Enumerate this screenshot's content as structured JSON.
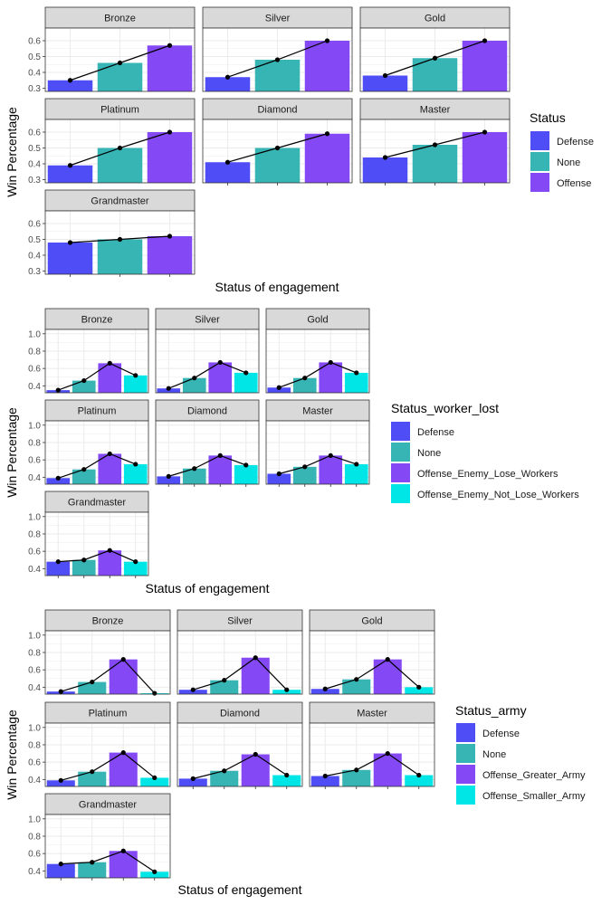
{
  "colors": {
    "Defense": "#4f4df5",
    "None": "#37b4b4",
    "Offense": "#8448f5",
    "Offense_Enemy_Lose_Workers": "#8448f5",
    "Offense_Greater_Army": "#8448f5",
    "Offense_Enemy_Not_Lose_Workers": "#00e5e5",
    "Offense_Smaller_Army": "#00e5e5",
    "strip_fill": "#d9d9d9",
    "grid": "#ebebeb",
    "line": "#000000"
  },
  "chart_data": [
    {
      "type": "bar",
      "facets": [
        "Bronze",
        "Silver",
        "Gold",
        "Platinum",
        "Diamond",
        "Master",
        "Grandmaster"
      ],
      "categories": [
        "Defense",
        "None",
        "Offense"
      ],
      "values": {
        "Bronze": [
          0.35,
          0.46,
          0.57
        ],
        "Silver": [
          0.37,
          0.48,
          0.6
        ],
        "Gold": [
          0.38,
          0.49,
          0.6
        ],
        "Platinum": [
          0.39,
          0.5,
          0.6
        ],
        "Diamond": [
          0.41,
          0.5,
          0.59
        ],
        "Master": [
          0.44,
          0.52,
          0.6
        ],
        "Grandmaster": [
          0.48,
          0.5,
          0.52
        ]
      },
      "ylim": [
        0.28,
        0.68
      ],
      "yticks": [
        0.3,
        0.4,
        0.5,
        0.6
      ],
      "xlabel": "Status of engagement",
      "ylabel": "Win Percentage",
      "legend_title": "Status",
      "legend_position": "right"
    },
    {
      "type": "bar",
      "facets": [
        "Bronze",
        "Silver",
        "Gold",
        "Platinum",
        "Diamond",
        "Master",
        "Grandmaster"
      ],
      "categories": [
        "Defense",
        "None",
        "Offense_Enemy_Lose_Workers",
        "Offense_Enemy_Not_Lose_Workers"
      ],
      "values": {
        "Bronze": [
          0.35,
          0.46,
          0.66,
          0.52
        ],
        "Silver": [
          0.37,
          0.49,
          0.67,
          0.55
        ],
        "Gold": [
          0.38,
          0.49,
          0.67,
          0.55
        ],
        "Platinum": [
          0.39,
          0.49,
          0.67,
          0.55
        ],
        "Diamond": [
          0.41,
          0.5,
          0.65,
          0.54
        ],
        "Master": [
          0.44,
          0.52,
          0.65,
          0.55
        ],
        "Grandmaster": [
          0.48,
          0.5,
          0.61,
          0.48
        ]
      },
      "ylim": [
        0.32,
        1.05
      ],
      "yticks": [
        0.4,
        0.6,
        0.8,
        1.0
      ],
      "xlabel": "Status of engagement",
      "ylabel": "Win Percentage",
      "legend_title": "Status_worker_lost",
      "legend_position": "right"
    },
    {
      "type": "bar",
      "facets": [
        "Bronze",
        "Silver",
        "Gold",
        "Platinum",
        "Diamond",
        "Master",
        "Grandmaster"
      ],
      "categories": [
        "Defense",
        "None",
        "Offense_Greater_Army",
        "Offense_Smaller_Army"
      ],
      "values": {
        "Bronze": [
          0.35,
          0.46,
          0.72,
          0.33
        ],
        "Silver": [
          0.37,
          0.48,
          0.74,
          0.37
        ],
        "Gold": [
          0.38,
          0.49,
          0.72,
          0.4
        ],
        "Platinum": [
          0.39,
          0.49,
          0.71,
          0.42
        ],
        "Diamond": [
          0.41,
          0.5,
          0.69,
          0.45
        ],
        "Master": [
          0.44,
          0.51,
          0.7,
          0.45
        ],
        "Grandmaster": [
          0.48,
          0.5,
          0.63,
          0.39
        ]
      },
      "ylim": [
        0.32,
        1.05
      ],
      "yticks": [
        0.4,
        0.6,
        0.8,
        1.0
      ],
      "xlabel": "Status of engagement",
      "ylabel": "Win Percentage",
      "legend_title": "Status_army",
      "legend_position": "right"
    }
  ]
}
